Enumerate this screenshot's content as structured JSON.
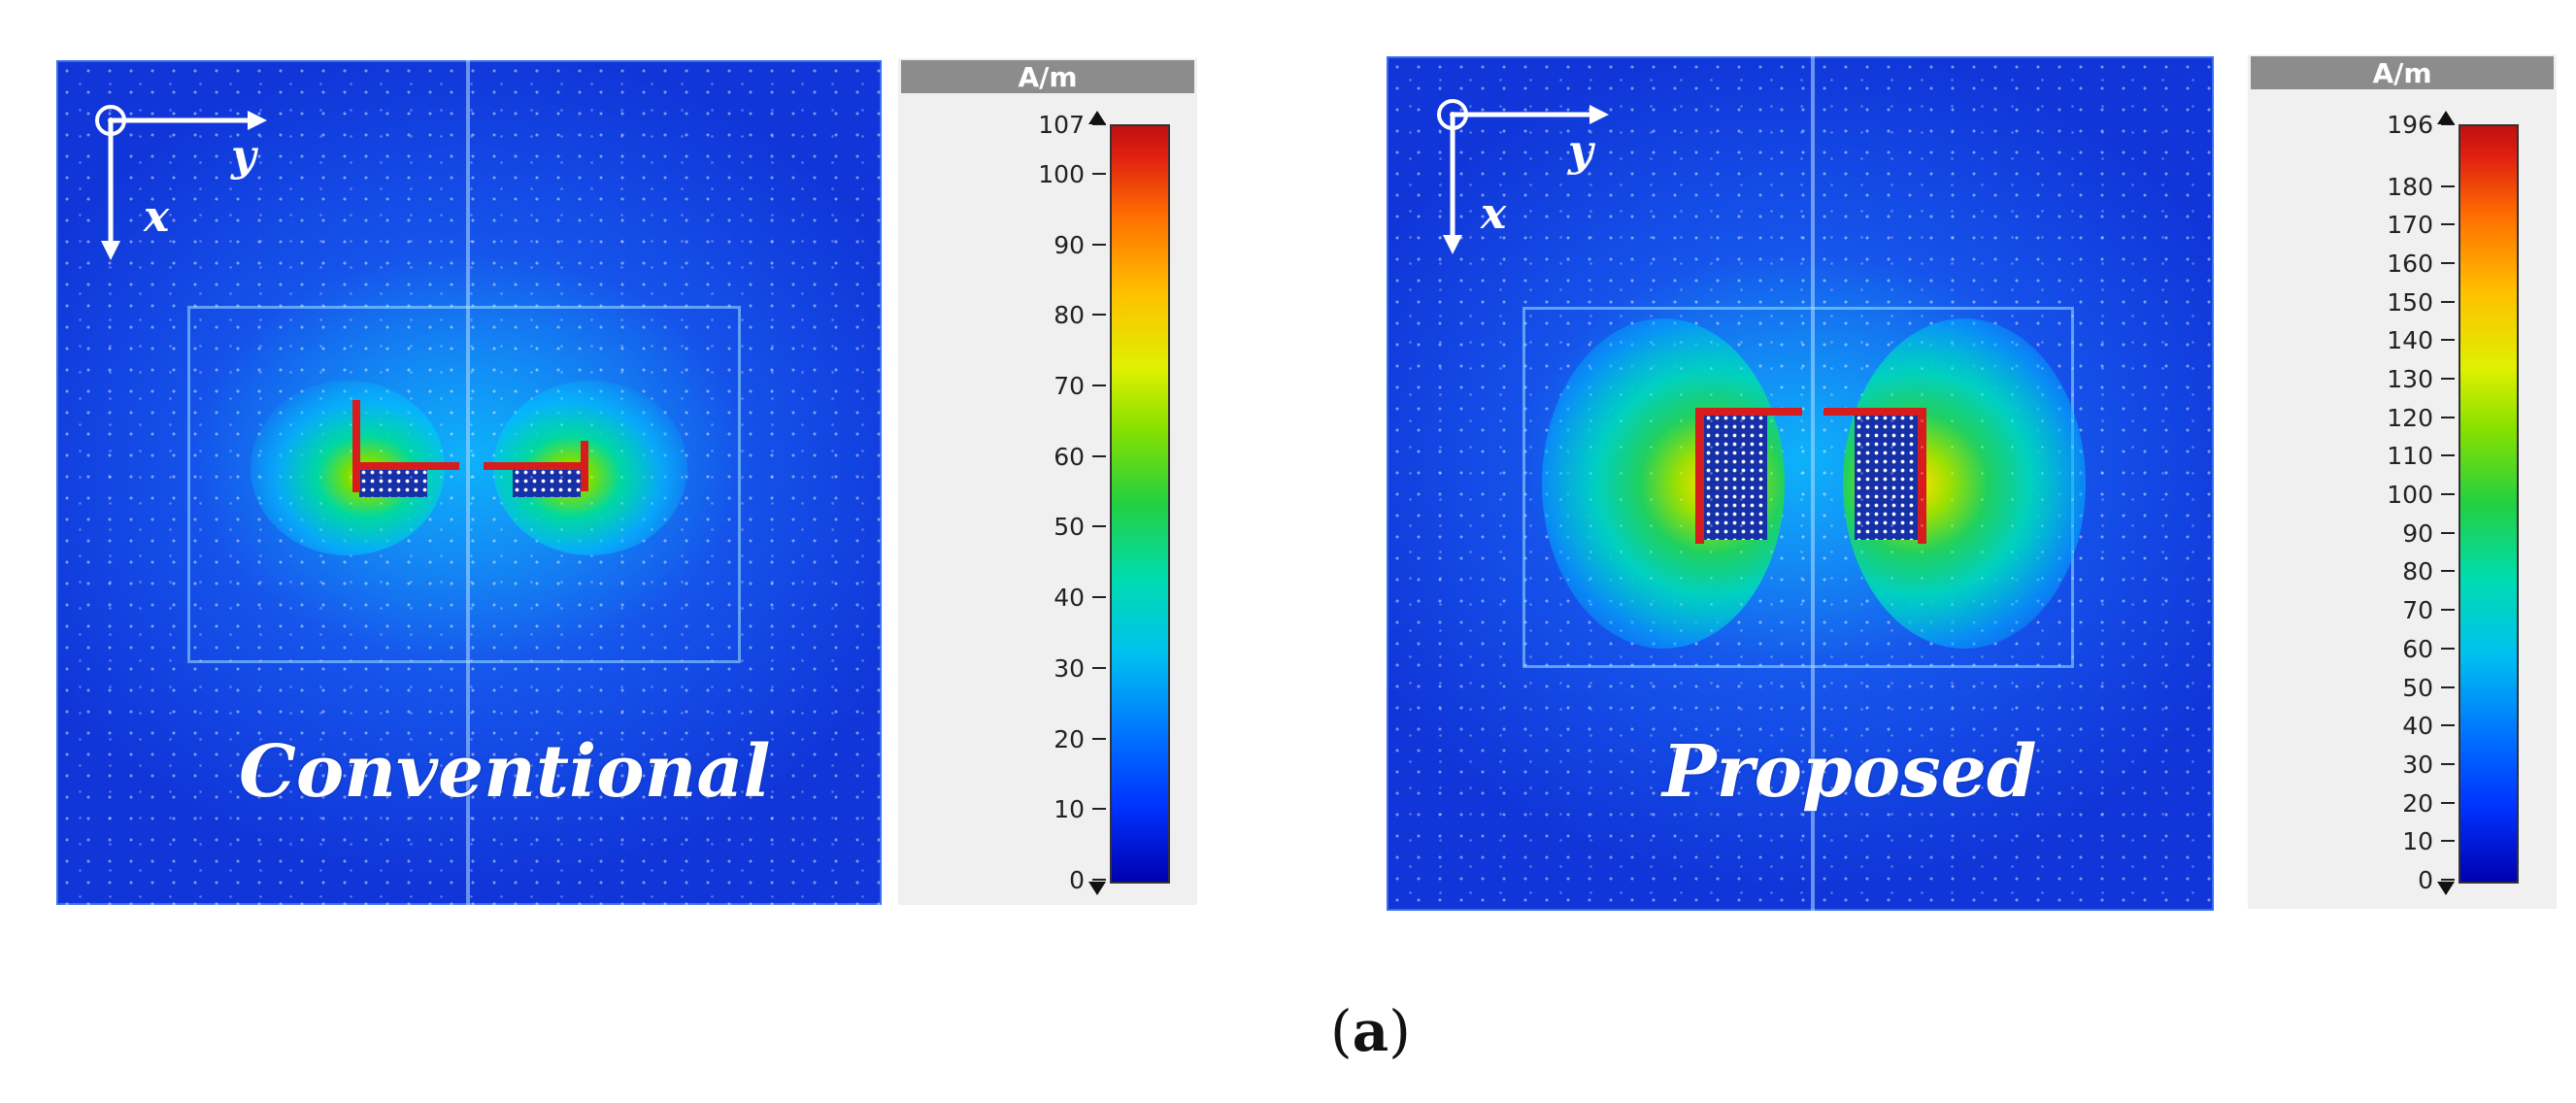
{
  "caption": "(a)",
  "caption_letter": "a",
  "panels": [
    {
      "overlay_label": "Conventional",
      "axis_x": "x",
      "axis_y": "y",
      "unit": "A/m",
      "colorbar": {
        "min": 0,
        "max": 107,
        "ticks": [
          107,
          100,
          90,
          80,
          70,
          60,
          50,
          40,
          30,
          20,
          10,
          0
        ]
      }
    },
    {
      "overlay_label": "Proposed",
      "axis_x": "x",
      "axis_y": "y",
      "unit": "A/m",
      "colorbar": {
        "min": 0,
        "max": 196,
        "ticks": [
          196,
          180,
          170,
          160,
          150,
          140,
          130,
          120,
          110,
          100,
          90,
          80,
          70,
          60,
          50,
          40,
          30,
          20,
          10,
          0
        ]
      }
    }
  ]
}
